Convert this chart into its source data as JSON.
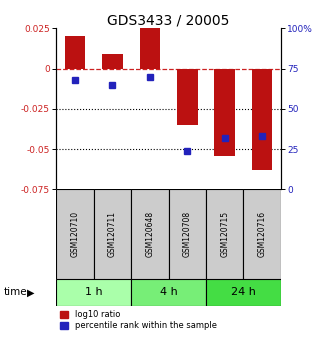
{
  "title": "GDS3433 / 20005",
  "samples": [
    "GSM120710",
    "GSM120711",
    "GSM120648",
    "GSM120708",
    "GSM120715",
    "GSM120716"
  ],
  "time_groups": [
    {
      "label": "1 h",
      "start": 0,
      "end": 1,
      "color": "#aaffaa"
    },
    {
      "label": "4 h",
      "start": 2,
      "end": 3,
      "color": "#77ee77"
    },
    {
      "label": "24 h",
      "start": 4,
      "end": 5,
      "color": "#44dd44"
    }
  ],
  "bar_heights": [
    0.02,
    0.009,
    0.025,
    -0.035,
    -0.054,
    -0.063
  ],
  "percentile_rank": [
    68,
    65,
    70,
    24,
    32,
    33
  ],
  "ylim_left": [
    -0.075,
    0.025
  ],
  "ylim_right": [
    0,
    100
  ],
  "yticks_left": [
    0.025,
    0,
    -0.025,
    -0.05,
    -0.075
  ],
  "yticks_right": [
    100,
    75,
    50,
    25,
    0
  ],
  "bar_color": "#bb1111",
  "dot_color": "#2222bb",
  "zero_line_color": "#cc2222",
  "dotted_line_color": "#000000",
  "sample_box_color": "#cccccc",
  "bar_width": 0.55
}
